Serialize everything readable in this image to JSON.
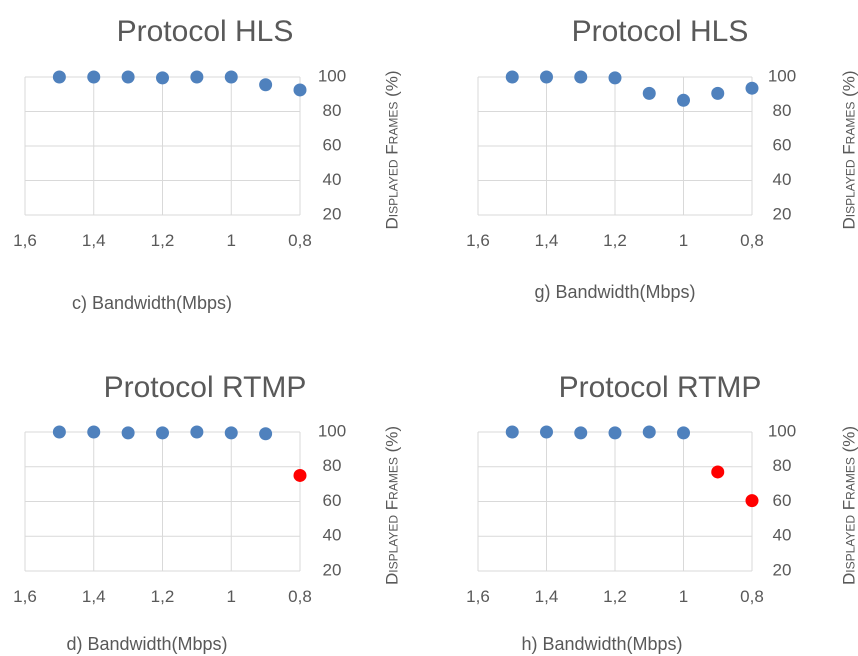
{
  "chart_data": [
    {
      "type": "scatter",
      "title": "Protocol HLS",
      "xlabel": "c) Bandwidth(Mbps)",
      "ylabel": "Displayed Frames (%)",
      "xlim": [
        1.6,
        0.8
      ],
      "x_reversed": true,
      "ylim": [
        20,
        100
      ],
      "x_ticks": [
        "1,6",
        "1,4",
        "1,2",
        "1",
        "0,8"
      ],
      "y_ticks": [
        "20",
        "40",
        "60",
        "80",
        "100"
      ],
      "grid": true,
      "points": [
        {
          "x": 1.5,
          "y": 100,
          "color": "#4f81bd"
        },
        {
          "x": 1.4,
          "y": 100,
          "color": "#4f81bd"
        },
        {
          "x": 1.3,
          "y": 100,
          "color": "#4f81bd"
        },
        {
          "x": 1.2,
          "y": 99.5,
          "color": "#4f81bd"
        },
        {
          "x": 1.1,
          "y": 100,
          "color": "#4f81bd"
        },
        {
          "x": 1.0,
          "y": 100,
          "color": "#4f81bd"
        },
        {
          "x": 0.9,
          "y": 95.5,
          "color": "#4f81bd"
        },
        {
          "x": 0.8,
          "y": 92.5,
          "color": "#4f81bd"
        }
      ]
    },
    {
      "type": "scatter",
      "title": "Protocol HLS",
      "xlabel": "g) Bandwidth(Mbps)",
      "ylabel": "Displayed Frames (%)",
      "xlim": [
        1.6,
        0.8
      ],
      "x_reversed": true,
      "ylim": [
        20,
        100
      ],
      "x_ticks": [
        "1,6",
        "1,4",
        "1,2",
        "1",
        "0,8"
      ],
      "y_ticks": [
        "20",
        "40",
        "60",
        "80",
        "100"
      ],
      "grid": true,
      "points": [
        {
          "x": 1.5,
          "y": 100,
          "color": "#4f81bd"
        },
        {
          "x": 1.4,
          "y": 100,
          "color": "#4f81bd"
        },
        {
          "x": 1.3,
          "y": 100,
          "color": "#4f81bd"
        },
        {
          "x": 1.2,
          "y": 99.5,
          "color": "#4f81bd"
        },
        {
          "x": 1.1,
          "y": 90.5,
          "color": "#4f81bd"
        },
        {
          "x": 1.0,
          "y": 86.5,
          "color": "#4f81bd"
        },
        {
          "x": 0.9,
          "y": 90.5,
          "color": "#4f81bd"
        },
        {
          "x": 0.8,
          "y": 93.5,
          "color": "#4f81bd"
        }
      ]
    },
    {
      "type": "scatter",
      "title": "Protocol RTMP",
      "xlabel": "d) Bandwidth(Mbps)",
      "ylabel": "Displayed Frames (%)",
      "xlim": [
        1.6,
        0.8
      ],
      "x_reversed": true,
      "ylim": [
        20,
        100
      ],
      "x_ticks": [
        "1,6",
        "1,4",
        "1,2",
        "1",
        "0,8"
      ],
      "y_ticks": [
        "20",
        "40",
        "60",
        "80",
        "100"
      ],
      "grid": true,
      "points": [
        {
          "x": 1.5,
          "y": 100,
          "color": "#4f81bd"
        },
        {
          "x": 1.4,
          "y": 100,
          "color": "#4f81bd"
        },
        {
          "x": 1.3,
          "y": 99.5,
          "color": "#4f81bd"
        },
        {
          "x": 1.2,
          "y": 99.5,
          "color": "#4f81bd"
        },
        {
          "x": 1.1,
          "y": 100,
          "color": "#4f81bd"
        },
        {
          "x": 1.0,
          "y": 99.5,
          "color": "#4f81bd"
        },
        {
          "x": 0.9,
          "y": 99,
          "color": "#4f81bd"
        },
        {
          "x": 0.8,
          "y": 75,
          "color": "#ff0000"
        }
      ]
    },
    {
      "type": "scatter",
      "title": "Protocol RTMP",
      "xlabel": "h) Bandwidth(Mbps)",
      "ylabel": "Displayed Frames (%)",
      "xlim": [
        1.6,
        0.8
      ],
      "x_reversed": true,
      "ylim": [
        20,
        100
      ],
      "x_ticks": [
        "1,6",
        "1,4",
        "1,2",
        "1",
        "0,8"
      ],
      "y_ticks": [
        "20",
        "40",
        "60",
        "80",
        "100"
      ],
      "grid": true,
      "points": [
        {
          "x": 1.5,
          "y": 100,
          "color": "#4f81bd"
        },
        {
          "x": 1.4,
          "y": 100,
          "color": "#4f81bd"
        },
        {
          "x": 1.3,
          "y": 99.5,
          "color": "#4f81bd"
        },
        {
          "x": 1.2,
          "y": 99.5,
          "color": "#4f81bd"
        },
        {
          "x": 1.1,
          "y": 100,
          "color": "#4f81bd"
        },
        {
          "x": 1.0,
          "y": 99.5,
          "color": "#4f81bd"
        },
        {
          "x": 0.9,
          "y": 77,
          "color": "#ff0000"
        },
        {
          "x": 0.8,
          "y": 60.5,
          "color": "#ff0000"
        }
      ]
    }
  ]
}
